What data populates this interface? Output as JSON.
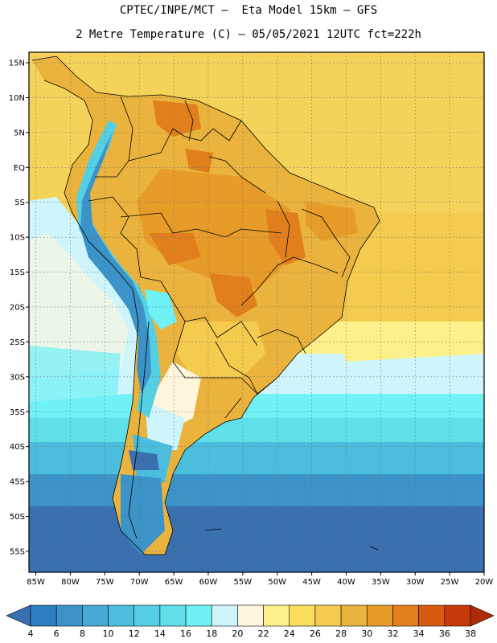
{
  "header": {
    "line1": "CPTEC/INPE/MCT –  Eta Model 15km – GFS",
    "line2": "2 Metre Temperature (C) – 05/05/2021 12UTC fct=222h"
  },
  "map": {
    "lon_range": [
      -86,
      -20
    ],
    "lat_range": [
      -58,
      16.5
    ],
    "lon_ticks": [
      "85W",
      "80W",
      "75W",
      "70W",
      "65W",
      "60W",
      "55W",
      "50W",
      "45W",
      "40W",
      "35W",
      "30W",
      "25W",
      "20W"
    ],
    "lat_ticks": [
      "15N",
      "10N",
      "5N",
      "EQ",
      "5S",
      "10S",
      "15S",
      "20S",
      "25S",
      "30S",
      "35S",
      "40S",
      "45S",
      "50S",
      "55S"
    ]
  },
  "colorbar": {
    "labels": [
      "4",
      "6",
      "8",
      "10",
      "12",
      "14",
      "16",
      "18",
      "20",
      "22",
      "24",
      "26",
      "28",
      "30",
      "32",
      "34",
      "36",
      "38"
    ],
    "colors": [
      "#3a6fb0",
      "#2e7fc2",
      "#3b93c8",
      "#46a8d4",
      "#4cbedd",
      "#55cfe3",
      "#5fdfe9",
      "#6ff1f6",
      "#cdf5fb",
      "#fff6dc",
      "#fdf08a",
      "#f9de5c",
      "#f3cc4f",
      "#eab33d",
      "#e79c2a",
      "#e27f1d",
      "#d85b10",
      "#c73a0a",
      "#ad2b08"
    ]
  }
}
